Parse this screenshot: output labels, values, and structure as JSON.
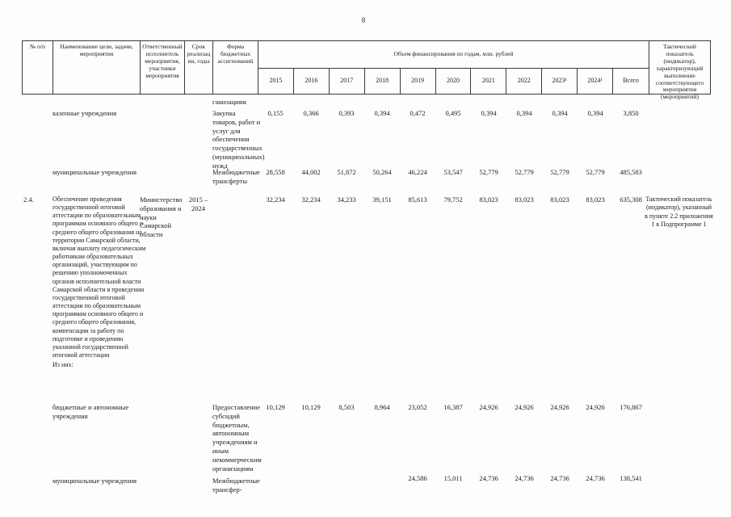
{
  "page_number": "8",
  "header": {
    "col_num": "№ п/п",
    "col_name": "Наименование цели, задачи, мероприятия",
    "col_executor": "Ответственный исполнитель мероприятия, участники мероприятия",
    "col_period": "Срок реализации, годы",
    "col_form": "Форма бюджетных ассигнований",
    "col_volume_group": "Объем финансирования по годам, млн. рублей",
    "year_labels": [
      "2015",
      "2016",
      "2017",
      "2018",
      "2019",
      "2020",
      "2021",
      "2022",
      "2023¹",
      "2024¹",
      "Всего"
    ],
    "col_indicator": "Тактический показатель (индикатор), характеризующий выполнение соответствующего мероприятия (мероприятий)"
  },
  "rows": {
    "carryover": {
      "form_tail": "ганизациям"
    },
    "state_institutions": {
      "name": "казенные учреждения",
      "form": "Закупка товаров, работ и услуг для обеспечения государственных (муниципальных) нужд",
      "values": [
        "0,155",
        "0,366",
        "0,393",
        "0,394",
        "0,472",
        "0,495",
        "0,394",
        "0,394",
        "0,394",
        "0,394",
        "3,850"
      ]
    },
    "municipal_institutions_1": {
      "name": "муниципальные учреждения",
      "form": "Межбюджетные трансферты",
      "values": [
        "28,558",
        "44,002",
        "51,872",
        "50,264",
        "46,224",
        "53,547",
        "52,779",
        "52,779",
        "52,779",
        "52,779",
        "485,583"
      ]
    },
    "row_2_4": {
      "num": "2.4.",
      "name": "Обеспечение проведения государственной итоговой аттестации по образовательным программам основного общего и среднего общего образования на территории Самарской области, включая выплату педагогическим работникам образовательных организаций, участвующим по решению уполномоченных органов исполнительной власти Самарской области в проведении государственной итоговой аттестации по образовательным программам основного общего и среднего общего образования, компенсации за работу по подготовке и проведению указанной государственной итоговой аттестации",
      "subnote": "Из них:",
      "executor": "Министерство образования и науки Самарской области",
      "period": "2015 – 2024",
      "values": [
        "32,234",
        "32,234",
        "34,233",
        "39,151",
        "85,613",
        "79,752",
        "83,023",
        "83,023",
        "83,023",
        "83,023",
        "635,308"
      ],
      "indicator": "Тактический показатель (индикатор), указанный в пункте 2.2 приложения 1 к Подпрограмме 1"
    },
    "budget_autonomous": {
      "name": "бюджетные и автономные учреждения",
      "form": "Предоставление субсидий бюджетным, автономным учреждениям и иным некоммерческим организациям",
      "values": [
        "10,129",
        "10,129",
        "8,503",
        "8,964",
        "23,052",
        "16,387",
        "24,926",
        "24,926",
        "24,926",
        "24,926",
        "176,867"
      ]
    },
    "municipal_institutions_2": {
      "name": "муниципальные учреждения",
      "form": "Межбюджетные трансфер-",
      "values": [
        "",
        "",
        "",
        "",
        "24,586",
        "15,011",
        "24,736",
        "24,736",
        "24,736",
        "24,736",
        "138,541"
      ]
    }
  }
}
